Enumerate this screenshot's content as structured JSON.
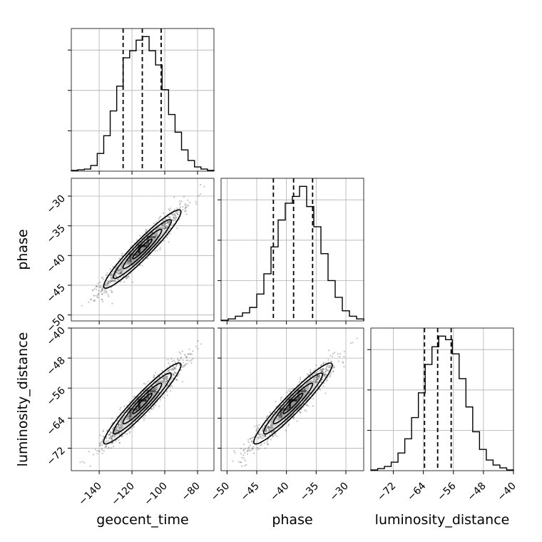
{
  "chart_data": {
    "type": "corner",
    "parameters": [
      {
        "name": "geocent_time",
        "range": [
          -157,
          -70
        ],
        "ticks": [
          -140,
          -120,
          -100,
          -80
        ],
        "tick_labels": [
          "−140",
          "−120",
          "−100",
          "−80"
        ],
        "quantiles": [
          -125.4,
          -113.7,
          -102.2
        ]
      },
      {
        "name": "phase",
        "range": [
          -51,
          -27
        ],
        "ticks": [
          -50,
          -45,
          -40,
          -35,
          -30
        ],
        "tick_labels": [
          "−50",
          "−45",
          "−40",
          "−35",
          "−30"
        ],
        "quantiles": [
          -42.2,
          -38.8,
          -35.6
        ]
      },
      {
        "name": "luminosity_distance",
        "range": [
          -78,
          -40
        ],
        "ticks": [
          -72,
          -64,
          -56,
          -48,
          -40
        ],
        "tick_labels": [
          "−72",
          "−64",
          "−56",
          "−48",
          "−40"
        ],
        "quantiles": [
          -63.7,
          -60.2,
          -56.6
        ]
      }
    ],
    "marginals": [
      {
        "param": "geocent_time",
        "bin_edges": [
          -157,
          -70
        ],
        "counts": [
          1,
          2,
          3,
          8,
          25,
          50,
          85,
          120,
          160,
          170,
          185,
          190,
          170,
          150,
          115,
          80,
          55,
          30,
          15,
          6,
          3,
          1
        ]
      },
      {
        "param": "phase",
        "bin_edges": [
          -51,
          -27
        ],
        "counts": [
          1,
          3,
          7,
          12,
          20,
          40,
          70,
          110,
          150,
          175,
          185,
          200,
          170,
          140,
          100,
          60,
          35,
          15,
          7,
          3
        ]
      },
      {
        "param": "luminosity_distance",
        "bin_edges": [
          -78,
          -40
        ],
        "counts": [
          1,
          3,
          6,
          12,
          25,
          45,
          75,
          110,
          150,
          175,
          190,
          185,
          165,
          130,
          90,
          55,
          30,
          15,
          8,
          4,
          1
        ]
      }
    ],
    "joint": [
      {
        "x": "geocent_time",
        "y": "phase",
        "mean": [
          -113.7,
          -38.9
        ],
        "sd": [
          11.8,
          3.3
        ],
        "corr": 0.95
      },
      {
        "x": "geocent_time",
        "y": "luminosity_distance",
        "mean": [
          -113.7,
          -60.1
        ],
        "sd": [
          11.8,
          5.4
        ],
        "corr": 0.95
      },
      {
        "x": "phase",
        "y": "luminosity_distance",
        "mean": [
          -38.9,
          -60.1
        ],
        "sd": [
          3.3,
          5.4
        ],
        "corr": 0.95
      }
    ],
    "grid": true,
    "contour_color": "#000000",
    "scatter_color": "#555555"
  }
}
